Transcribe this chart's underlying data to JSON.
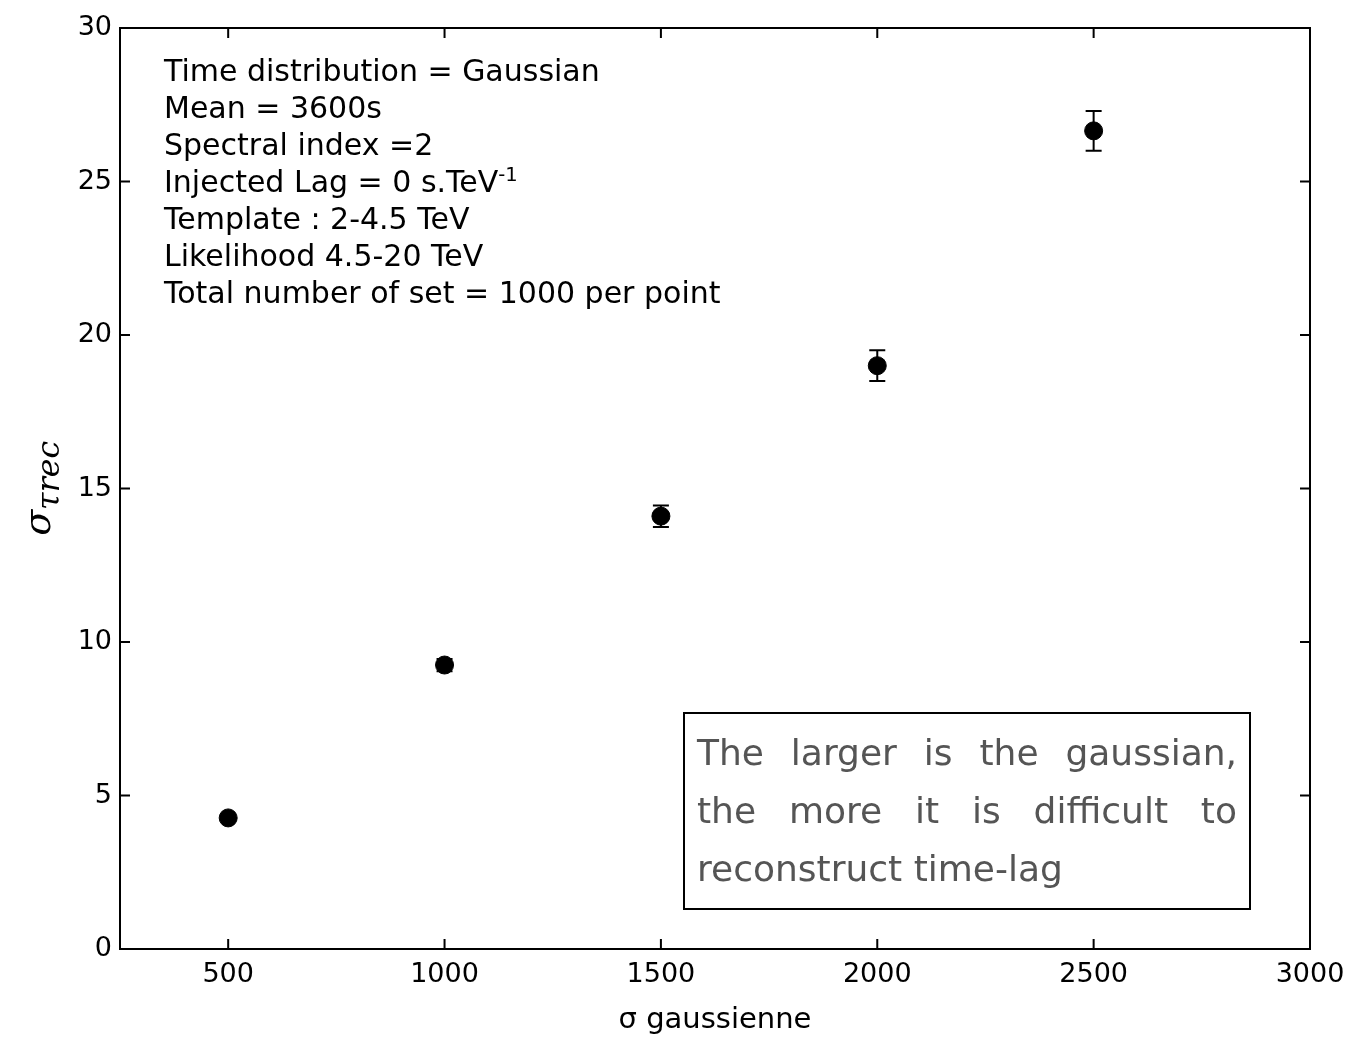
{
  "chart_data": {
    "type": "scatter",
    "xlabel": "σ gaussienne",
    "ylabel": "σ$_{τrec}$",
    "x": [
      500,
      1000,
      1500,
      2000,
      2500
    ],
    "series": [
      {
        "color": "#000000",
        "values": [
          4.27,
          9.25,
          14.1,
          19.0,
          26.65
        ],
        "errors": [
          null,
          0.2,
          0.35,
          0.5,
          0.65
        ]
      }
    ],
    "xlim": [
      250,
      3000
    ],
    "xticks": [
      500,
      1000,
      1500,
      2000,
      2500,
      3000
    ],
    "ylim": [
      0,
      30
    ],
    "yticks": [
      0,
      5,
      10,
      15,
      20,
      25,
      30
    ],
    "grid": false,
    "legend": false,
    "marker": "circle",
    "annotations": [
      "Time distribution = Gaussian",
      "Mean = 3600s",
      "Spectral index =2",
      "Injected Lag = 0 s.TeV$^{-1}$",
      "Template : 2-4.5 TeV",
      "Likelihood 4.5-20 TeV",
      "Total number of set = 1000 per point",
      "The larger is the gaussian, the more it is  difficult to reconstruct time-lag"
    ]
  }
}
